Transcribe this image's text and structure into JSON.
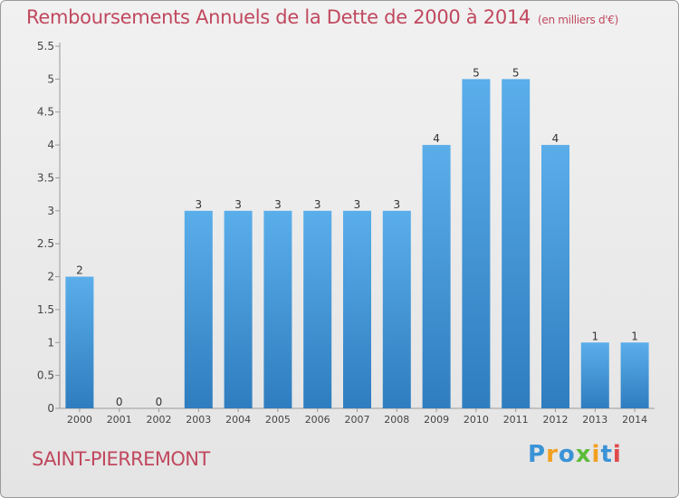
{
  "header": {
    "title": "Remboursements Annuels de la Dette de 2000 à 2014",
    "unit": "(en milliers d'€)"
  },
  "footer": {
    "town": "SAINT-PIERREMONT",
    "brand": "Proxiti"
  },
  "colors": {
    "title": "#c0485e",
    "bar_top": "#5aaeea",
    "bar_bottom": "#2f7dbf",
    "brand_letters": [
      "#3a93d6",
      "#f2a020",
      "#3a93d6",
      "#5cbc3a",
      "#f2a020",
      "#3a93d6",
      "#e04a4a"
    ]
  },
  "chart_data": {
    "type": "bar",
    "title": "Remboursements Annuels de la Dette de 2000 à 2014",
    "xlabel": "",
    "ylabel": "",
    "categories": [
      "2000",
      "2001",
      "2002",
      "2003",
      "2004",
      "2005",
      "2006",
      "2007",
      "2008",
      "2009",
      "2010",
      "2011",
      "2012",
      "2013",
      "2014"
    ],
    "values": [
      2,
      0,
      0,
      3,
      3,
      3,
      3,
      3,
      3,
      4,
      5,
      5,
      4,
      1,
      1
    ],
    "data_labels": [
      "2",
      "0",
      "0",
      "3",
      "3",
      "3",
      "3",
      "3",
      "3",
      "4",
      "5",
      "5",
      "4",
      "1",
      "1"
    ],
    "ylim": [
      0,
      5.5
    ],
    "yticks": [
      "0",
      "0.5",
      "1",
      "1.5",
      "2",
      "2.5",
      "3",
      "3.5",
      "4",
      "4.5",
      "5",
      "5.5"
    ],
    "grid": false,
    "legend": "none"
  }
}
